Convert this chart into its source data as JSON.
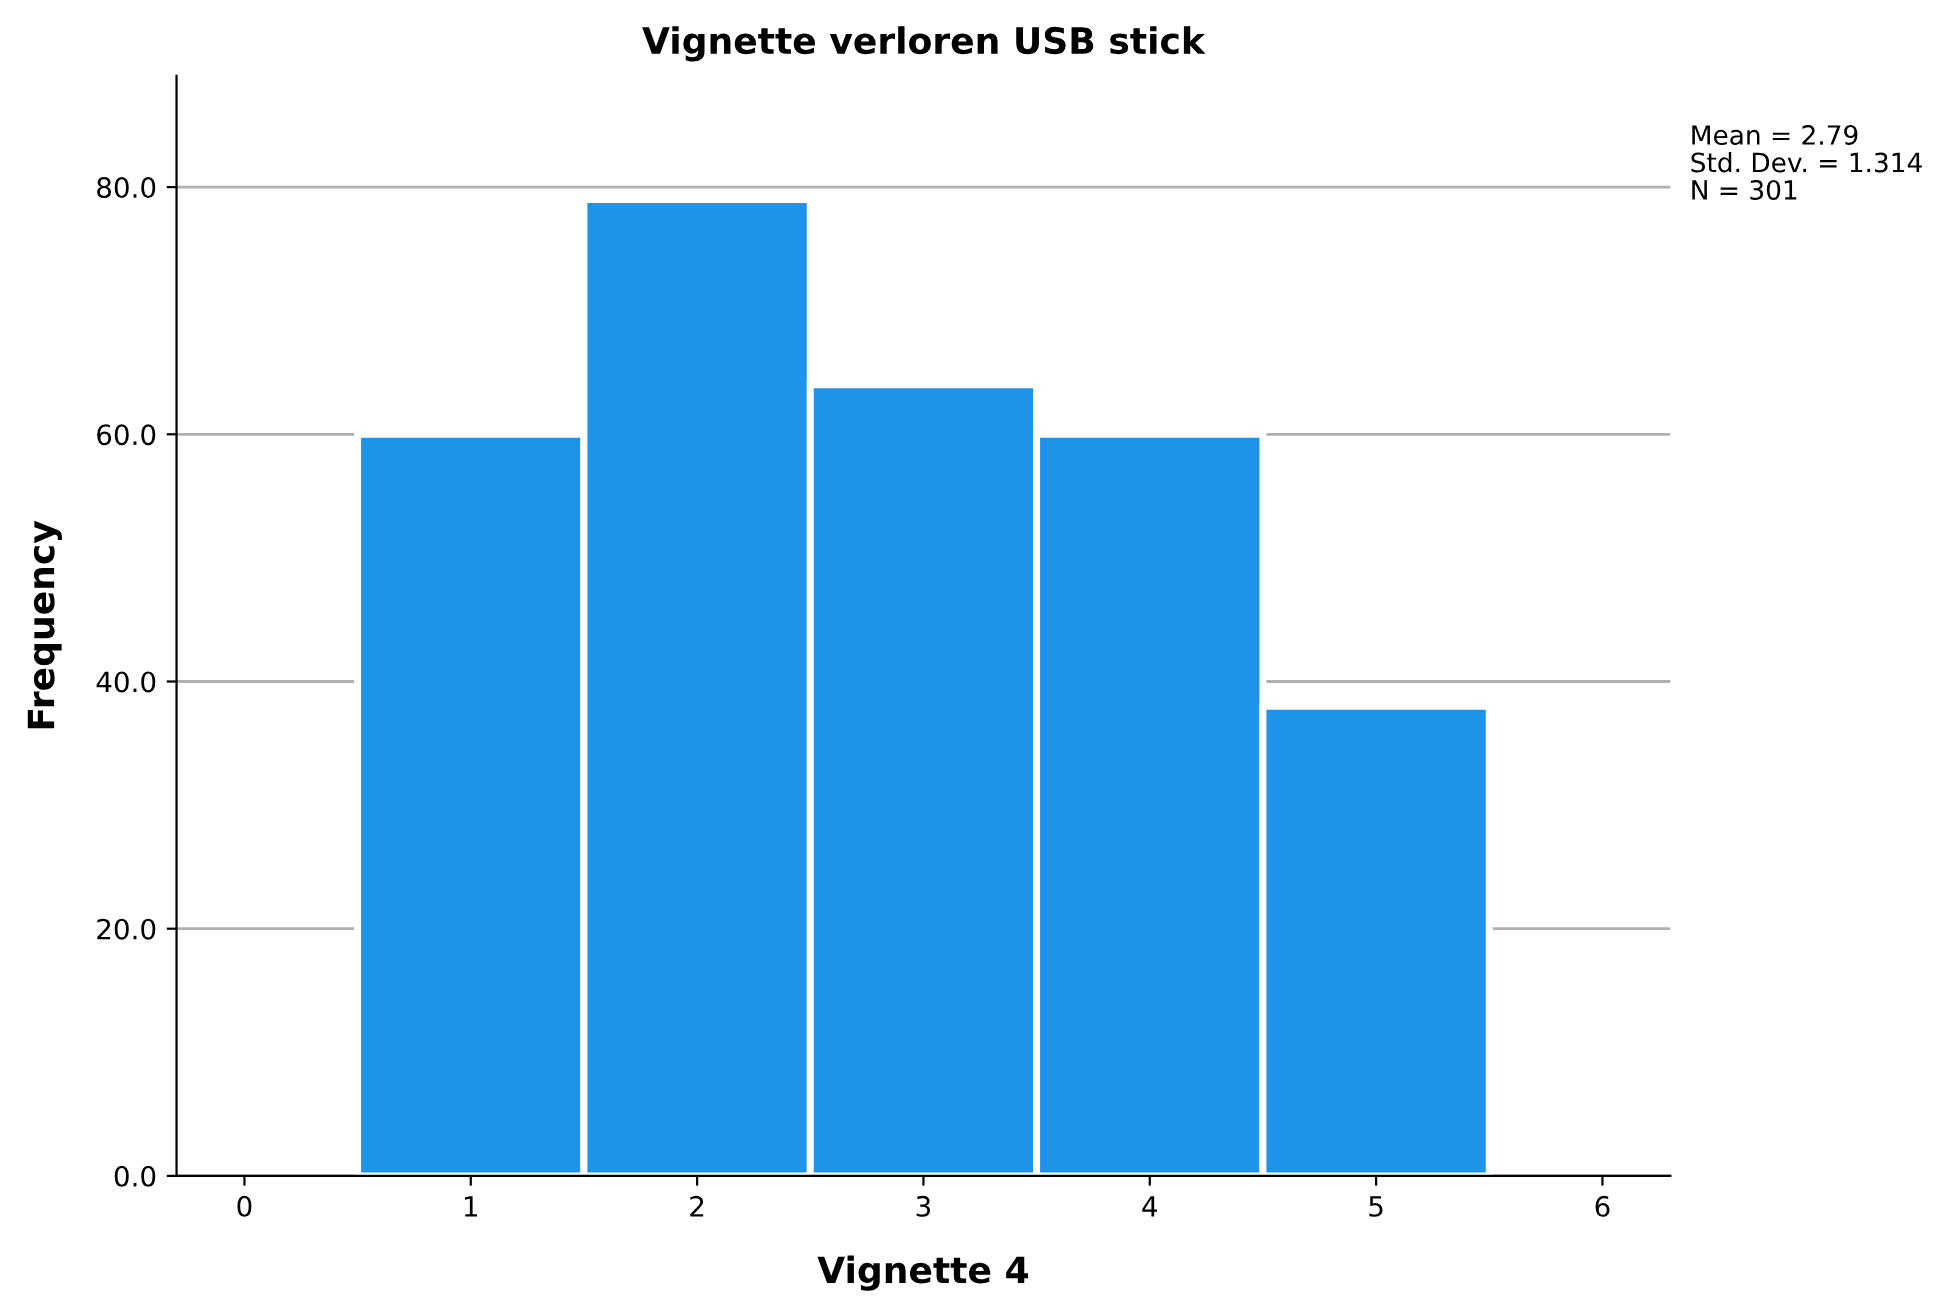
{
  "chart_data": {
    "type": "histogram",
    "title": "Vignette verloren USB stick",
    "xlabel": "Vignette 4",
    "ylabel": "Frequency",
    "bins": [
      0.5,
      1.5,
      2.5,
      3.5,
      4.5,
      5.5
    ],
    "values": [
      60,
      79,
      64,
      60,
      38
    ],
    "color": "#1f93e8",
    "xlim": [
      -0.3,
      6.3
    ],
    "xticks": [
      0,
      1,
      2,
      3,
      4,
      5,
      6
    ],
    "ylim": [
      0,
      89
    ],
    "yticks": [
      {
        "value": 0,
        "label": "0.0"
      },
      {
        "value": 20,
        "label": "20.0"
      },
      {
        "value": 40,
        "label": "40.0"
      },
      {
        "value": 60,
        "label": "60.0"
      },
      {
        "value": 80,
        "label": "80.0"
      }
    ],
    "grid": "y",
    "annotations": [
      "Mean = 2.79",
      "Std. Dev. = 1.314",
      "N = 301"
    ]
  }
}
